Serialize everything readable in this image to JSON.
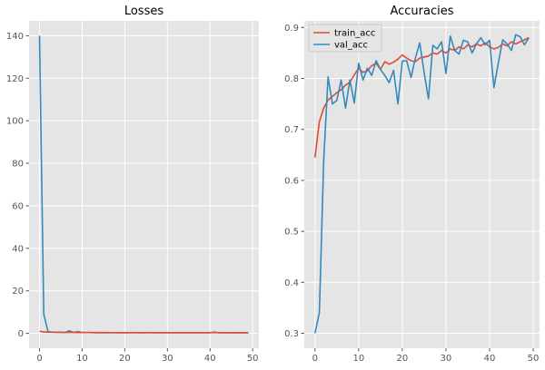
{
  "chart_data": [
    {
      "type": "line",
      "title": "Losses",
      "xlabel": "",
      "ylabel": "",
      "xlim": [
        -2.45,
        51.45
      ],
      "ylim": [
        -7,
        147
      ],
      "xticks": [
        0,
        10,
        20,
        30,
        40,
        50
      ],
      "yticks": [
        0,
        20,
        40,
        60,
        80,
        100,
        120,
        140
      ],
      "grid": true,
      "series": [
        {
          "color": "#348abd",
          "x": [
            0,
            1,
            2,
            3,
            4,
            5,
            6,
            7,
            8,
            9,
            10,
            11,
            12,
            13,
            14,
            15,
            16,
            17,
            18,
            19,
            20,
            21,
            22,
            23,
            24,
            25,
            26,
            27,
            28,
            29,
            30,
            31,
            32,
            33,
            34,
            35,
            36,
            37,
            38,
            39,
            40,
            41,
            42,
            43,
            44,
            45,
            46,
            47,
            48,
            49
          ],
          "values": [
            140,
            9,
            0.8,
            0.6,
            0.5,
            0.5,
            0.4,
            1.2,
            0.4,
            0.8,
            0.4,
            0.4,
            0.4,
            0.3,
            0.3,
            0.3,
            0.3,
            0.3,
            0.3,
            0.3,
            0.3,
            0.3,
            0.4,
            0.3,
            0.3,
            0.3,
            0.4,
            0.3,
            0.3,
            0.3,
            0.3,
            0.3,
            0.3,
            0.3,
            0.3,
            0.3,
            0.3,
            0.3,
            0.3,
            0.3,
            0.3,
            0.6,
            0.3,
            0.3,
            0.3,
            0.3,
            0.3,
            0.3,
            0.3,
            0.3
          ]
        },
        {
          "color": "#e24a33",
          "x": [
            0,
            1,
            2,
            3,
            4,
            5,
            6,
            7,
            8,
            9,
            10,
            11,
            12,
            13,
            14,
            15,
            16,
            17,
            18,
            19,
            20,
            21,
            22,
            23,
            24,
            25,
            26,
            27,
            28,
            29,
            30,
            31,
            32,
            33,
            34,
            35,
            36,
            37,
            38,
            39,
            40,
            41,
            42,
            43,
            44,
            45,
            46,
            47,
            48,
            49
          ],
          "values": [
            1.0,
            0.7,
            0.6,
            0.55,
            0.5,
            0.48,
            0.45,
            0.43,
            0.42,
            0.4,
            0.4,
            0.39,
            0.38,
            0.38,
            0.37,
            0.37,
            0.36,
            0.36,
            0.36,
            0.35,
            0.35,
            0.35,
            0.35,
            0.34,
            0.34,
            0.34,
            0.34,
            0.33,
            0.33,
            0.33,
            0.33,
            0.33,
            0.32,
            0.32,
            0.32,
            0.32,
            0.32,
            0.32,
            0.31,
            0.31,
            0.31,
            0.31,
            0.31,
            0.31,
            0.31,
            0.3,
            0.3,
            0.3,
            0.3,
            0.3
          ]
        }
      ]
    },
    {
      "type": "line",
      "title": "Accuracies",
      "xlabel": "",
      "ylabel": "",
      "xlim": [
        -2.45,
        51.45
      ],
      "ylim": [
        0.2706,
        0.9131
      ],
      "xticks": [
        0,
        10,
        20,
        30,
        40,
        50
      ],
      "yticks": [
        0.3,
        0.4,
        0.5,
        0.6,
        0.7,
        0.8,
        0.9
      ],
      "yticklabels": [
        "0.3",
        "0.4",
        "0.5",
        "0.6",
        "0.7",
        "0.8",
        "0.9"
      ],
      "grid": true,
      "legend": "top-left",
      "series": [
        {
          "name": "train_acc",
          "color": "#e24a33",
          "x": [
            0,
            1,
            2,
            3,
            4,
            5,
            6,
            7,
            8,
            9,
            10,
            11,
            12,
            13,
            14,
            15,
            16,
            17,
            18,
            19,
            20,
            21,
            22,
            23,
            24,
            25,
            26,
            27,
            28,
            29,
            30,
            31,
            32,
            33,
            34,
            35,
            36,
            37,
            38,
            39,
            40,
            41,
            42,
            43,
            44,
            45,
            46,
            47,
            48,
            49
          ],
          "values": [
            0.645,
            0.715,
            0.742,
            0.758,
            0.765,
            0.772,
            0.778,
            0.787,
            0.793,
            0.807,
            0.82,
            0.812,
            0.815,
            0.825,
            0.83,
            0.818,
            0.833,
            0.828,
            0.832,
            0.838,
            0.846,
            0.84,
            0.835,
            0.833,
            0.84,
            0.842,
            0.844,
            0.85,
            0.848,
            0.855,
            0.85,
            0.858,
            0.855,
            0.862,
            0.858,
            0.866,
            0.862,
            0.868,
            0.864,
            0.87,
            0.862,
            0.858,
            0.861,
            0.868,
            0.864,
            0.872,
            0.868,
            0.872,
            0.876,
            0.88
          ]
        },
        {
          "name": "val_acc",
          "color": "#348abd",
          "x": [
            0,
            1,
            2,
            3,
            4,
            5,
            6,
            7,
            8,
            9,
            10,
            11,
            12,
            13,
            14,
            15,
            16,
            17,
            18,
            19,
            20,
            21,
            22,
            23,
            24,
            25,
            26,
            27,
            28,
            29,
            30,
            31,
            32,
            33,
            34,
            35,
            36,
            37,
            38,
            39,
            40,
            41,
            42,
            43,
            44,
            45,
            46,
            47,
            48,
            49
          ],
          "values": [
            0.3,
            0.34,
            0.64,
            0.803,
            0.75,
            0.757,
            0.797,
            0.742,
            0.797,
            0.752,
            0.83,
            0.797,
            0.82,
            0.806,
            0.835,
            0.818,
            0.806,
            0.792,
            0.816,
            0.75,
            0.834,
            0.835,
            0.802,
            0.84,
            0.87,
            0.812,
            0.76,
            0.865,
            0.858,
            0.872,
            0.81,
            0.883,
            0.855,
            0.848,
            0.875,
            0.872,
            0.85,
            0.868,
            0.88,
            0.866,
            0.875,
            0.782,
            0.83,
            0.876,
            0.868,
            0.855,
            0.886,
            0.882,
            0.866,
            0.88
          ]
        }
      ]
    }
  ]
}
